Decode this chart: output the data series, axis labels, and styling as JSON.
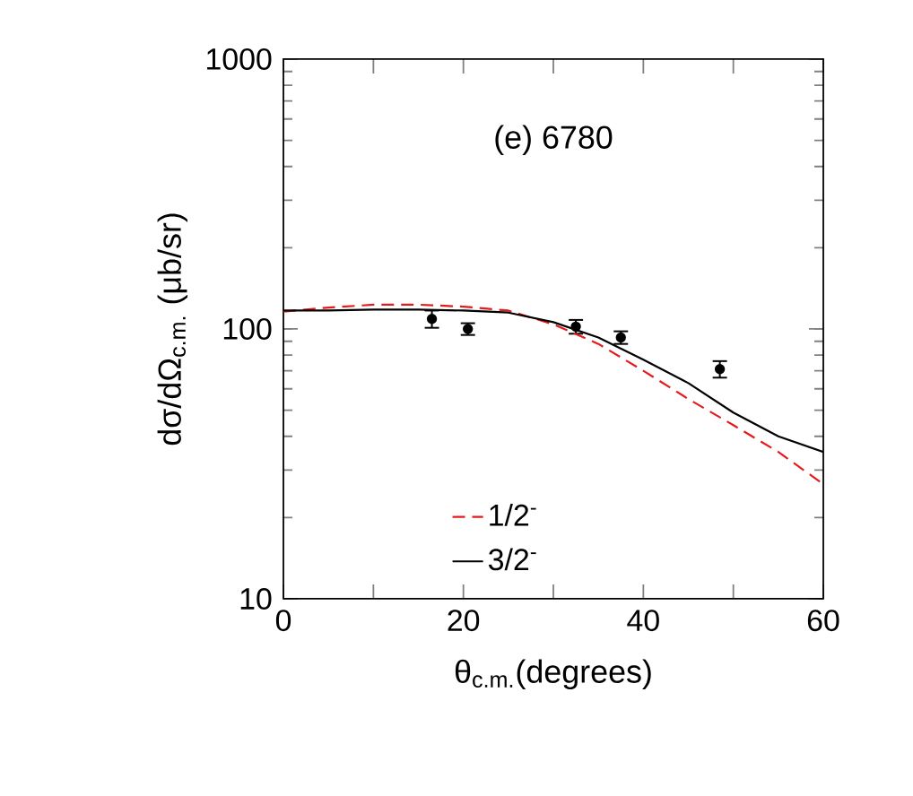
{
  "chart_data": {
    "type": "line",
    "xlabel": "θ$_{c.m.}$(degrees)",
    "ylabel": "dσ/dΩ$_{c.m.}$ (μb/sr)",
    "annotations": [
      "(e) 6780"
    ],
    "xlim": [
      0,
      60
    ],
    "ylim": [
      10,
      1000
    ],
    "log": "y",
    "xticks": [
      0,
      {
        "value": 10,
        "label": null
      },
      20,
      {
        "value": 30,
        "label": null
      },
      40,
      {
        "value": 50,
        "label": null
      },
      60
    ],
    "yticks": [
      10,
      100,
      1000
    ],
    "legend": "bottom",
    "marker": "circle",
    "series": [
      {
        "type": "scatter",
        "color": "#000000",
        "x": [
          16.5,
          20.5,
          32.5,
          37.5,
          48.5
        ],
        "values": [
          109,
          100,
          102,
          93,
          71
        ],
        "errors": [
          8,
          5,
          6,
          5,
          5
        ]
      },
      {
        "name": "1/2$^{-}$",
        "color": "#e41a1c",
        "line_style": "dashed",
        "marker": "none",
        "x": [
          0,
          5,
          10,
          15,
          20,
          25,
          30,
          35,
          40,
          45,
          50,
          55,
          60
        ],
        "values": [
          116,
          120,
          123,
          123,
          121,
          117,
          104,
          88,
          70,
          55,
          44,
          35,
          26.6
        ]
      },
      {
        "name": "3/2$^{-}$",
        "color": "#000000",
        "line_style": "solid",
        "marker": "none",
        "x": [
          0,
          5,
          10,
          15,
          20,
          25,
          30,
          35,
          40,
          45,
          50,
          55,
          60
        ],
        "values": [
          117,
          117,
          118,
          118,
          117,
          115,
          106,
          93,
          77,
          63,
          49,
          40,
          35
        ]
      }
    ]
  }
}
